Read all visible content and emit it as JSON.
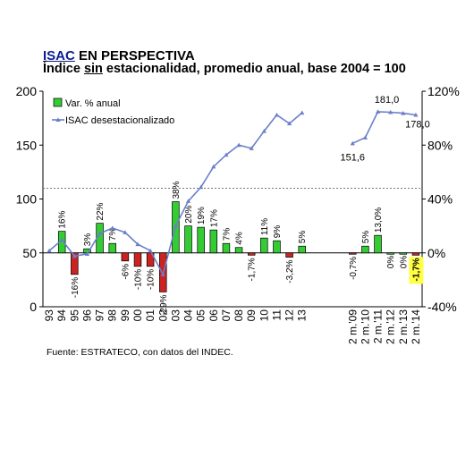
{
  "header": {
    "title_accent": "ISAC",
    "title_rest": " EN PERSPECTIVA",
    "subtitle_pre": "Índice ",
    "subtitle_under": "sin",
    "subtitle_post": " estacionalidad, promedio anual, base 2004 = 100"
  },
  "footer": {
    "source": "Fuente: ESTRATECO, con datos del INDEC."
  },
  "colors": {
    "positive": "#33cc33",
    "negative": "#cc2222",
    "line": "#6a7fc8",
    "highlight": "#ffff44"
  },
  "chart_data": {
    "type": "bar+line",
    "left_axis": {
      "ticks": [
        "0",
        "50",
        "100",
        "150",
        "200"
      ],
      "range": [
        0,
        200
      ]
    },
    "right_axis": {
      "ticks": [
        "-40%",
        "0%",
        "40%",
        "80%",
        "120%"
      ],
      "range": [
        -40,
        120
      ]
    },
    "reference_line_left": 110,
    "legend": [
      {
        "name": "Var. % anual",
        "kind": "bar"
      },
      {
        "name": "ISAC desestacionalizado",
        "kind": "line"
      }
    ],
    "categories": [
      "93",
      "94",
      "95",
      "96",
      "97",
      "98",
      "99",
      "00",
      "01",
      "02",
      "03",
      "04",
      "05",
      "06",
      "07",
      "08",
      "09",
      "10",
      "11",
      "12",
      "13",
      "",
      "",
      "",
      "2 m.'09",
      "2 m.'10",
      "2 m.'11",
      "2 m.'12",
      "2 m.'13",
      "2 m.'14"
    ],
    "bar_values": [
      null,
      16,
      -16,
      3,
      22,
      7,
      -6,
      -10,
      -10,
      -29,
      38,
      20,
      19,
      17,
      7,
      4,
      -1.7,
      11,
      9,
      -3.2,
      5,
      null,
      null,
      null,
      -0.7,
      5,
      13.0,
      0,
      0,
      -1.7
    ],
    "bar_labels": [
      "",
      "16%",
      "-16%",
      "3%",
      "22%",
      "7%",
      "-6%",
      "-10%",
      "-10%",
      "-29%",
      "38%",
      "20%",
      "19%",
      "17%",
      "7%",
      "4%",
      "-1,7%",
      "11%",
      "9%",
      "-3,2%",
      "5%",
      "",
      "",
      "",
      "-0,7%",
      "5%",
      "13,0%",
      "0%",
      "0%",
      "-1,7%"
    ],
    "highlighted_bar_index": 29,
    "isac_values": [
      52,
      62,
      47,
      49,
      68,
      73,
      69,
      58,
      52,
      30,
      75,
      98,
      111,
      130,
      141,
      150,
      147,
      163,
      178,
      170,
      180,
      null,
      null,
      null,
      151.6,
      157,
      181,
      180.5,
      179.6,
      178.0
    ],
    "point_annotations": [
      {
        "index": 24,
        "text": "151,6"
      },
      {
        "index": 26,
        "text": "181,0"
      },
      {
        "index": 29,
        "text": "178,0"
      }
    ]
  }
}
